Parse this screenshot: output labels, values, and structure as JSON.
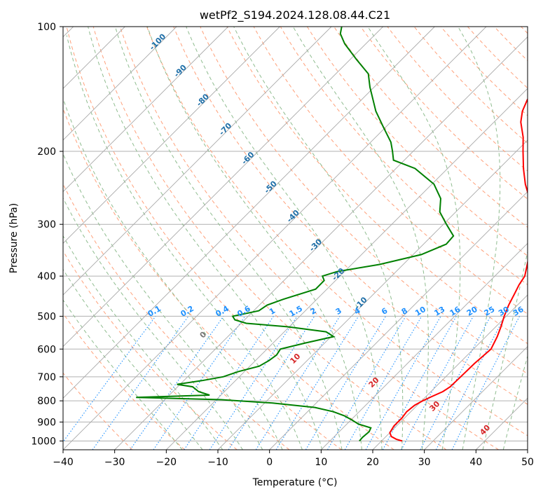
{
  "chart_data": {
    "type": "line",
    "title": "wetPf2_S194.2024.128.08.44.C21",
    "xlabel": "Temperature (°C)",
    "ylabel": "Pressure (hPa)",
    "xlim": [
      -40,
      50
    ],
    "ylim": [
      1050,
      100
    ],
    "y_scale": "log",
    "grid": true,
    "skew_degrees": 45,
    "x_ticks": [
      -40,
      -30,
      -20,
      -10,
      0,
      10,
      20,
      30,
      40,
      50
    ],
    "x_tick_labels": [
      "−40",
      "−30",
      "−20",
      "−10",
      "0",
      "10",
      "20",
      "30",
      "40",
      "50"
    ],
    "y_ticks": [
      100,
      200,
      300,
      400,
      500,
      600,
      700,
      800,
      900,
      1000
    ],
    "y_tick_labels": [
      "100",
      "200",
      "300",
      "400",
      "500",
      "600",
      "700",
      "800",
      "900",
      "1000"
    ],
    "colors": {
      "temperature": "#ff0000",
      "dewpoint": "#008000",
      "isotherm": "#a9a9a9",
      "dry_adiabat": "#ffa07a",
      "moist_adiabat": "#8fbc8f",
      "mixing_ratio": "#1e90ff",
      "isotherm_labels": "#1f6fa8",
      "moist_labels": "#d62728"
    },
    "series": [
      {
        "name": "",
        "role": "temperature",
        "points": [
          [
            1000,
            24
          ],
          [
            990,
            22.5
          ],
          [
            975,
            21
          ],
          [
            955,
            20
          ],
          [
            920,
            19.5
          ],
          [
            880,
            19.5
          ],
          [
            850,
            19.2
          ],
          [
            820,
            19.5
          ],
          [
            800,
            20.2
          ],
          [
            780,
            21.2
          ],
          [
            760,
            22.3
          ],
          [
            740,
            22.8
          ],
          [
            700,
            22.9
          ],
          [
            650,
            23.0
          ],
          [
            600,
            23.4
          ],
          [
            560,
            22.2
          ],
          [
            530,
            21.0
          ],
          [
            500,
            19.6
          ],
          [
            470,
            18.3
          ],
          [
            440,
            17.2
          ],
          [
            420,
            16.4
          ],
          [
            400,
            15.8
          ],
          [
            380,
            14.4
          ],
          [
            350,
            12.1
          ],
          [
            320,
            9.1
          ],
          [
            290,
            5.8
          ],
          [
            260,
            1.7
          ],
          [
            240,
            -1.9
          ],
          [
            220,
            -5.3
          ],
          [
            200,
            -8.7
          ],
          [
            185,
            -11.4
          ],
          [
            170,
            -14.8
          ],
          [
            160,
            -16.6
          ],
          [
            150,
            -17.9
          ],
          [
            140,
            -18.1
          ],
          [
            130,
            -17.9
          ],
          [
            120,
            -18.8
          ],
          [
            115,
            -19.4
          ],
          [
            108,
            -20.1
          ],
          [
            100,
            -20.3
          ]
        ]
      },
      {
        "name": "",
        "role": "dewpoint",
        "points": [
          [
            1000,
            15.7
          ],
          [
            980,
            15.6
          ],
          [
            950,
            15.8
          ],
          [
            930,
            15.4
          ],
          [
            910,
            12.2
          ],
          [
            890,
            10.2
          ],
          [
            870,
            8.0
          ],
          [
            850,
            5.0
          ],
          [
            830,
            0.6
          ],
          [
            810,
            -8.5
          ],
          [
            795,
            -19.1
          ],
          [
            785,
            -36.0
          ],
          [
            775,
            -22.2
          ],
          [
            760,
            -25.0
          ],
          [
            740,
            -27.1
          ],
          [
            730,
            -30.6
          ],
          [
            715,
            -26.5
          ],
          [
            700,
            -23.1
          ],
          [
            680,
            -21.2
          ],
          [
            660,
            -18.2
          ],
          [
            640,
            -17.4
          ],
          [
            620,
            -17.0
          ],
          [
            600,
            -17.4
          ],
          [
            580,
            -13.7
          ],
          [
            560,
            -9.5
          ],
          [
            545,
            -11.9
          ],
          [
            530,
            -20.4
          ],
          [
            520,
            -29.0
          ],
          [
            510,
            -31.9
          ],
          [
            500,
            -33.0
          ],
          [
            485,
            -29.0
          ],
          [
            470,
            -28.5
          ],
          [
            455,
            -26.5
          ],
          [
            430,
            -22.2
          ],
          [
            410,
            -22.2
          ],
          [
            400,
            -23.4
          ],
          [
            390,
            -21.4
          ],
          [
            375,
            -14.6
          ],
          [
            355,
            -8.4
          ],
          [
            335,
            -5.6
          ],
          [
            320,
            -5.8
          ],
          [
            300,
            -9.4
          ],
          [
            280,
            -13.1
          ],
          [
            260,
            -15.5
          ],
          [
            240,
            -19.6
          ],
          [
            220,
            -26.3
          ],
          [
            210,
            -32.1
          ],
          [
            200,
            -34.0
          ],
          [
            190,
            -36.1
          ],
          [
            175,
            -40.4
          ],
          [
            160,
            -45.0
          ],
          [
            140,
            -50.8
          ],
          [
            130,
            -53.7
          ],
          [
            120,
            -58.8
          ],
          [
            110,
            -64.1
          ],
          [
            104,
            -66.9
          ],
          [
            100,
            -68.0
          ]
        ]
      }
    ],
    "isotherm_labels": [
      "-100",
      "-90",
      "-80",
      "-70",
      "-60",
      "-50",
      "-40",
      "-30",
      "-20",
      "-10"
    ],
    "isotherm_label_values": [
      -100,
      -90,
      -80,
      -70,
      -60,
      -50,
      -40,
      -30,
      -20,
      -10
    ],
    "mixing_ratio_labels": [
      "0.1",
      "0.2",
      "0.4",
      "0.6",
      "1",
      "1.5",
      "2",
      "3",
      "4",
      "6",
      "8",
      "10",
      "13",
      "16",
      "20",
      "25",
      "30",
      "36"
    ],
    "mixing_ratio_values": [
      0.1,
      0.2,
      0.4,
      0.6,
      1,
      1.5,
      2,
      3,
      4,
      6,
      8,
      10,
      13,
      16,
      20,
      25,
      30,
      36
    ],
    "moist_adiabat_labels": [
      "0",
      "10",
      "20",
      "30",
      "40"
    ],
    "moist_adiabat_values": [
      0,
      10,
      20,
      30,
      40
    ]
  }
}
